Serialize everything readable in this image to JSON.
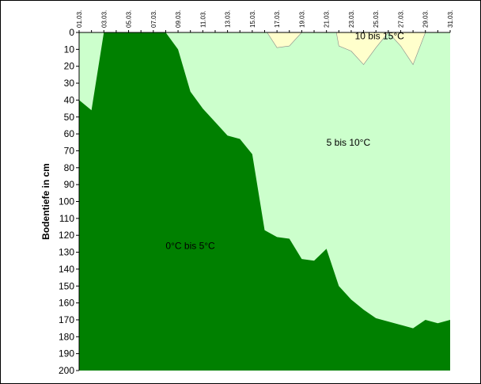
{
  "chart_data": {
    "type": "area",
    "ylabel": "Bodentiefe in cm",
    "y_inverted": true,
    "ylim": [
      0,
      200
    ],
    "yticks": [
      0,
      10,
      20,
      30,
      40,
      50,
      60,
      70,
      80,
      90,
      100,
      110,
      120,
      130,
      140,
      150,
      160,
      170,
      180,
      190,
      200
    ],
    "xlim": [
      1,
      31
    ],
    "x_tick_labels": [
      "01.03.",
      "03.03.",
      "05.03.",
      "07.03.",
      "09.03.",
      "11.03.",
      "13.03.",
      "15.03.",
      "17.03.",
      "19.03.",
      "21.03.",
      "23.03.",
      "25.03.",
      "27.03.",
      "29.03.",
      "31.03."
    ],
    "colors": {
      "zone_0_5": "#008000",
      "zone_5_10": "#ccffcc",
      "zone_10_15": "#ffffcc"
    },
    "regions": [
      {
        "name": "0°C bis 5°C",
        "label_day": 8,
        "label_depth": 128
      },
      {
        "name": "5 bis 10°C",
        "label_day": 21,
        "label_depth": 67
      },
      {
        "name": "10 bis 15°C",
        "label_day": 23.3,
        "label_depth": 4
      }
    ],
    "isotherm_5C": [
      [
        1,
        40
      ],
      [
        2,
        46
      ],
      [
        3,
        0
      ],
      [
        4,
        0
      ],
      [
        5,
        0
      ],
      [
        6,
        0
      ],
      [
        7,
        0
      ],
      [
        8,
        0
      ],
      [
        9,
        10
      ],
      [
        10,
        35
      ],
      [
        11,
        45
      ],
      [
        12,
        53
      ],
      [
        13,
        61
      ],
      [
        14,
        63
      ],
      [
        15,
        72
      ],
      [
        16,
        117
      ],
      [
        17,
        121
      ],
      [
        18,
        122
      ],
      [
        19,
        134
      ],
      [
        20,
        135
      ],
      [
        21,
        128
      ],
      [
        22,
        150
      ],
      [
        23,
        158
      ],
      [
        24,
        164
      ],
      [
        25,
        169
      ],
      [
        26,
        171
      ],
      [
        27,
        173
      ],
      [
        28,
        175
      ],
      [
        29,
        170
      ],
      [
        30,
        172
      ],
      [
        31,
        170
      ]
    ],
    "isotherm_10C_patches": [
      [
        [
          16.2,
          0
        ],
        [
          17,
          9
        ],
        [
          18,
          8
        ],
        [
          19,
          0
        ]
      ],
      [
        [
          21.8,
          0
        ],
        [
          22,
          8
        ],
        [
          23,
          11
        ],
        [
          24,
          19
        ],
        [
          25,
          9
        ],
        [
          26,
          0
        ]
      ],
      [
        [
          26,
          0
        ],
        [
          27,
          8
        ],
        [
          28,
          19
        ],
        [
          29,
          0
        ]
      ]
    ]
  }
}
